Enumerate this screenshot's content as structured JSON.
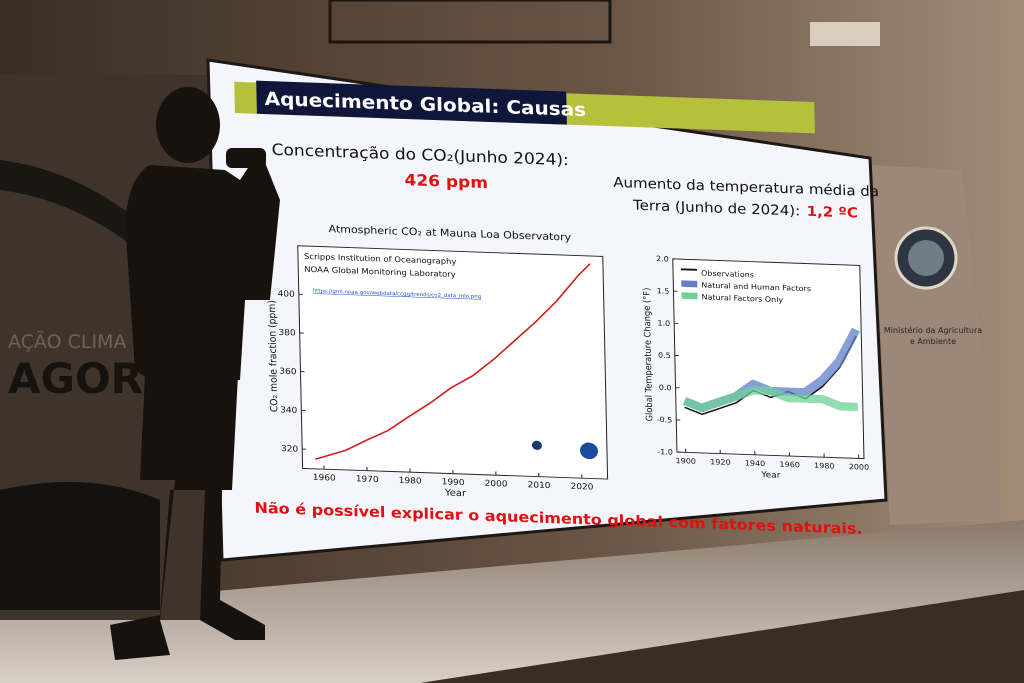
{
  "slide": {
    "title": "Aquecimento Global: Causas",
    "left_heading": "Concentração do CO₂(Junho 2024):",
    "left_value": "426 ppm",
    "right_heading": [
      "Aumento da temperatura média da",
      "Terra (Junho de 2024):"
    ],
    "right_value": "1,2 ºC",
    "conclusion": "Não é possível explicar o aquecimento global com fatores naturais."
  },
  "banners": {
    "left": [
      "AÇÃO CLIMA",
      "AGOR"
    ],
    "right": [
      "Ministério da Agricultura",
      "e Ambiente"
    ]
  },
  "chart_data": [
    {
      "type": "line",
      "title": "Atmospheric CO₂ at Mauna Loa Observatory",
      "annotations": [
        "Scripps Institution of Oceanography",
        "NOAA Global Monitoring Laboratory",
        "https://gml.noaa.gov/webdata/ccgg/trends/co2_data_mlo.png"
      ],
      "x_label": "Year",
      "y_label": "CO₂ mole fraction (ppm)",
      "x": [
        1958,
        1965,
        1970,
        1975,
        1980,
        1985,
        1990,
        1995,
        2000,
        2005,
        2010,
        2015,
        2020,
        2023
      ],
      "values": [
        315,
        320,
        325.7,
        331,
        338.7,
        346,
        354.4,
        360.8,
        369.7,
        379.8,
        389.9,
        401,
        414.2,
        421
      ],
      "color": "#d01818",
      "xlim": [
        1955,
        2026
      ],
      "ylim": [
        310,
        425
      ],
      "xticks": [
        1960,
        1970,
        1980,
        1990,
        2000,
        2010,
        2020
      ],
      "yticks": [
        320,
        340,
        360,
        380,
        400
      ]
    },
    {
      "type": "line",
      "y_label": "Global Temperature Change (°F)",
      "x_label": "Year",
      "x": [
        1900,
        1910,
        1920,
        1930,
        1940,
        1950,
        1960,
        1970,
        1980,
        1990,
        2000
      ],
      "series": [
        {
          "name": "Observations",
          "color": "#111111",
          "values": [
            -0.3,
            -0.4,
            -0.3,
            -0.2,
            0.0,
            -0.1,
            0.0,
            -0.1,
            0.1,
            0.4,
            0.9
          ]
        },
        {
          "name": "Natural and Human Factors",
          "color": "#5f7fc8",
          "values": [
            -0.2,
            -0.3,
            -0.2,
            -0.1,
            0.1,
            0.0,
            0.0,
            0.0,
            0.2,
            0.5,
            1.0
          ]
        },
        {
          "name": "Natural Factors Only",
          "color": "#6fcf9a",
          "values": [
            -0.2,
            -0.3,
            -0.2,
            -0.1,
            0.0,
            0.0,
            -0.1,
            -0.1,
            -0.1,
            -0.2,
            -0.2
          ]
        }
      ],
      "xlim": [
        1895,
        2003
      ],
      "ylim": [
        -1,
        2
      ],
      "xticks": [
        1900,
        1920,
        1940,
        1960,
        1980,
        2000
      ],
      "yticks": [
        {
          "value": -1,
          "label": "-1.0"
        },
        -0.5,
        {
          "value": 0,
          "label": "0.0"
        },
        0.5,
        {
          "value": 1,
          "label": "1.0"
        },
        1.5,
        {
          "value": 2,
          "label": "2.0"
        }
      ]
    }
  ]
}
